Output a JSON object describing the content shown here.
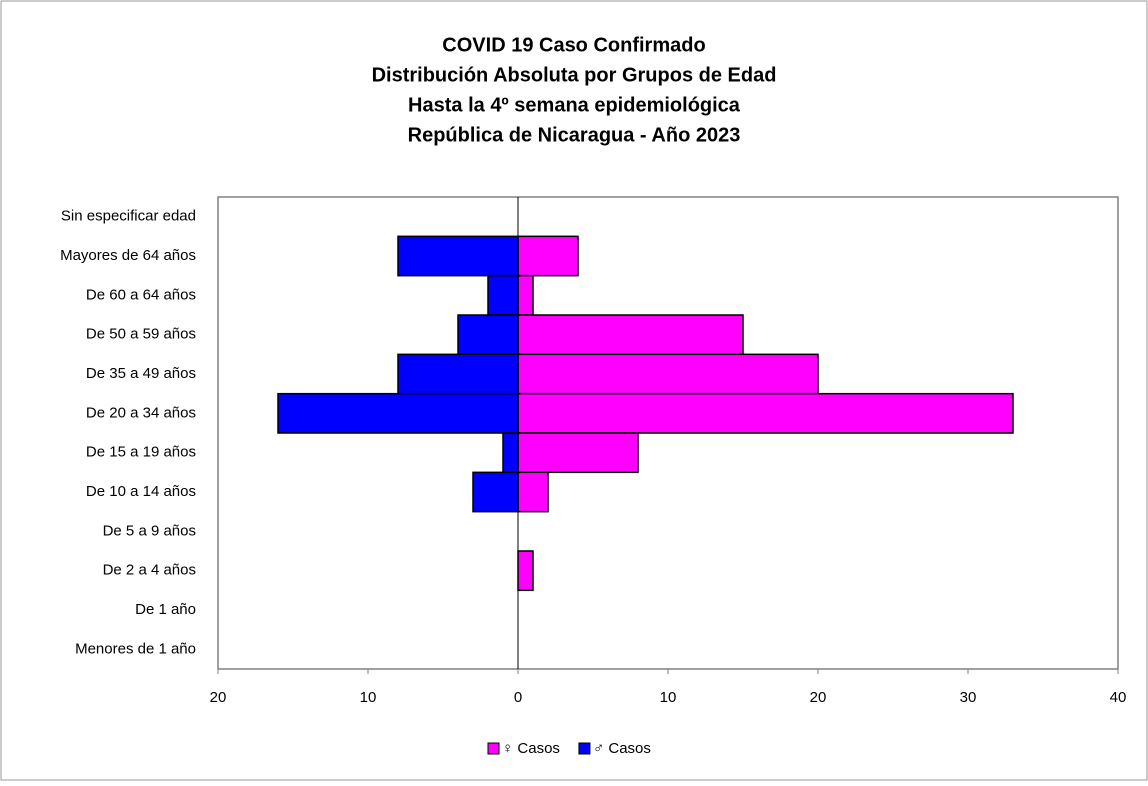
{
  "chart_data": {
    "type": "pyramid",
    "title": [
      "COVID 19 Caso Confirmado",
      "Distribución Absoluta por Grupos de Edad",
      "Hasta la 4º semana epidemiológica",
      "República de Nicaragua - Año 2023"
    ],
    "categories": [
      "Sin especificar edad",
      "Mayores de 64 años",
      "De 60 a 64 años",
      "De 50 a 59 años",
      "De 35 a 49 años",
      "De 20 a 34 años",
      "De 15 a 19 años",
      "De 10 a 14 años",
      "De 5 a 9 años",
      "De 2 a 4 años",
      "De 1 año",
      "Menores de 1 año"
    ],
    "series": [
      {
        "name": "♀ Casos",
        "color": "#ff00ff",
        "values": [
          0,
          4,
          1,
          15,
          20,
          33,
          8,
          2,
          0,
          1,
          0,
          0
        ]
      },
      {
        "name": "♂ Casos",
        "color": "#0000ff",
        "values": [
          0,
          -8,
          -2,
          -4,
          -8,
          -16,
          -1,
          -3,
          0,
          0,
          0,
          0
        ]
      }
    ],
    "xlim": [
      -20,
      40
    ],
    "xticks": [
      {
        "value": -20,
        "label": "20"
      },
      {
        "value": -10,
        "label": "10"
      },
      0,
      10,
      20,
      30,
      40
    ],
    "legend": "bottom"
  }
}
